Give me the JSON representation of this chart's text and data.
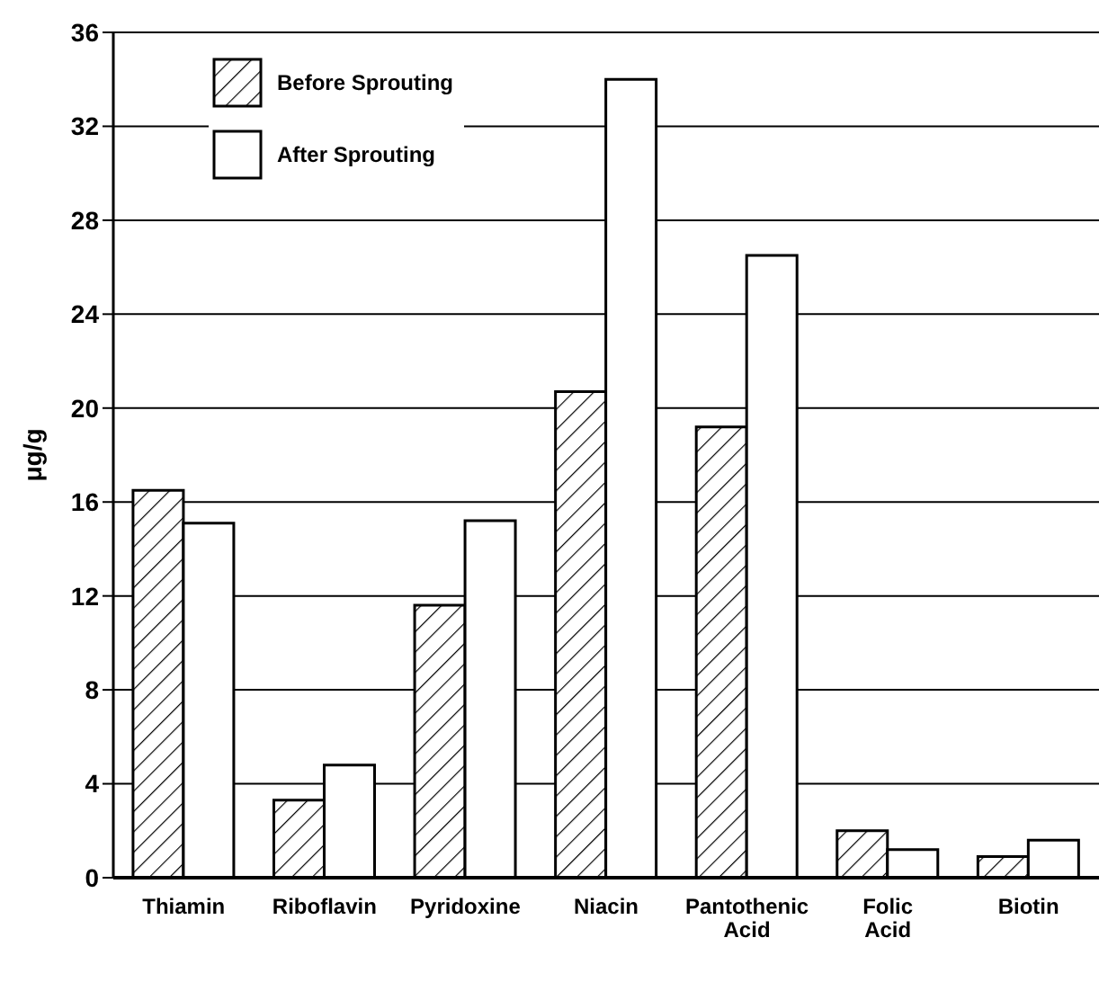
{
  "chart_data": {
    "type": "bar",
    "ylabel": "μg/g",
    "categories": [
      "Thiamin",
      "Riboflavin",
      "Pyridoxine",
      "Niacin",
      "Pantothenic Acid",
      "Folic Acid",
      "Biotin"
    ],
    "series": [
      {
        "name": "Before Sprouting",
        "color": "#000000",
        "values": [
          16.5,
          3.3,
          11.6,
          20.7,
          19.2,
          2.0,
          0.9
        ]
      },
      {
        "name": "After Sprouting",
        "color": "#ffffff",
        "values": [
          15.1,
          4.8,
          15.2,
          34.0,
          26.5,
          1.2,
          1.6
        ]
      }
    ],
    "ylim": [
      0,
      36
    ],
    "yticks": [
      0,
      4,
      8,
      12,
      16,
      20,
      24,
      28,
      32,
      36
    ],
    "grid": "y",
    "legend": "top left"
  }
}
